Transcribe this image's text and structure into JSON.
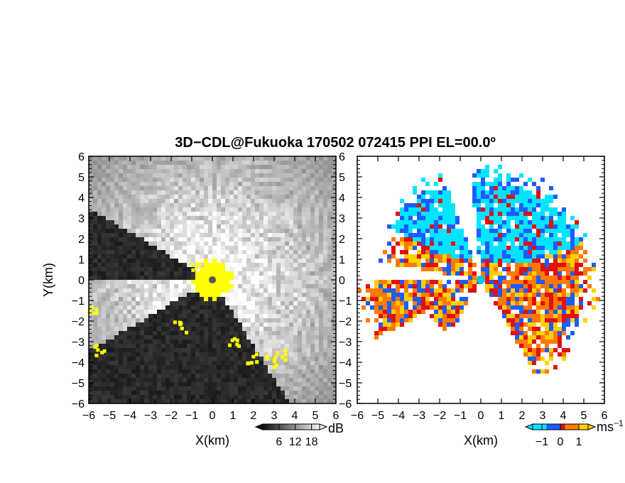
{
  "title": "3D−CDL@Fukuoka 170502 072415 PPI EL=00.0º",
  "chart_data": [
    {
      "type": "heatmap",
      "panel": "left",
      "quantity": "SNR",
      "xlabel": "X(km)",
      "ylabel": "Y(km)",
      "xlim": [
        -6,
        6
      ],
      "ylim": [
        -6,
        6
      ],
      "xticks": [
        "−6",
        "−5",
        "−4",
        "−3",
        "−2",
        "−1",
        "0",
        "1",
        "2",
        "3",
        "4",
        "5",
        "6"
      ],
      "yticks": [
        "6",
        "5",
        "4",
        "3",
        "2",
        "1",
        "0",
        "−1",
        "−2",
        "−3",
        "−4",
        "−5",
        "−6"
      ],
      "colorbar": {
        "unit": "dB",
        "ticks": [
          "6",
          "12",
          "18"
        ],
        "range": [
          0,
          21
        ],
        "palette": "gray"
      },
      "bright_sector_deg": [
        -60,
        150
      ],
      "highlight_color": "#ffff00",
      "background_color": "#303030"
    },
    {
      "type": "heatmap",
      "panel": "right",
      "quantity": "Doppler velocity",
      "xlabel": "X(km)",
      "xlim": [
        -6,
        6
      ],
      "ylim": [
        -6,
        6
      ],
      "xticks": [
        "−6",
        "−5",
        "−4",
        "−3",
        "−2",
        "−1",
        "0",
        "1",
        "2",
        "3",
        "4",
        "5",
        "6"
      ],
      "yticks": [
        "6",
        "5",
        "4",
        "3",
        "2",
        "1",
        "0",
        "−1",
        "−2",
        "−3",
        "−4",
        "−5",
        "−6"
      ],
      "colorbar": {
        "unit": "ms",
        "unit_exp": "−1",
        "ticks": [
          "−1",
          "0",
          "1"
        ],
        "range": [
          -1.5,
          1.5
        ]
      },
      "palette": [
        "#00e5ff",
        "#1e5cff",
        "#e01010",
        "#ff7a00",
        "#ffd000"
      ],
      "north_sector_velocity": -1,
      "south_sector_velocity": 1,
      "center_color": "#00c8e6"
    }
  ]
}
